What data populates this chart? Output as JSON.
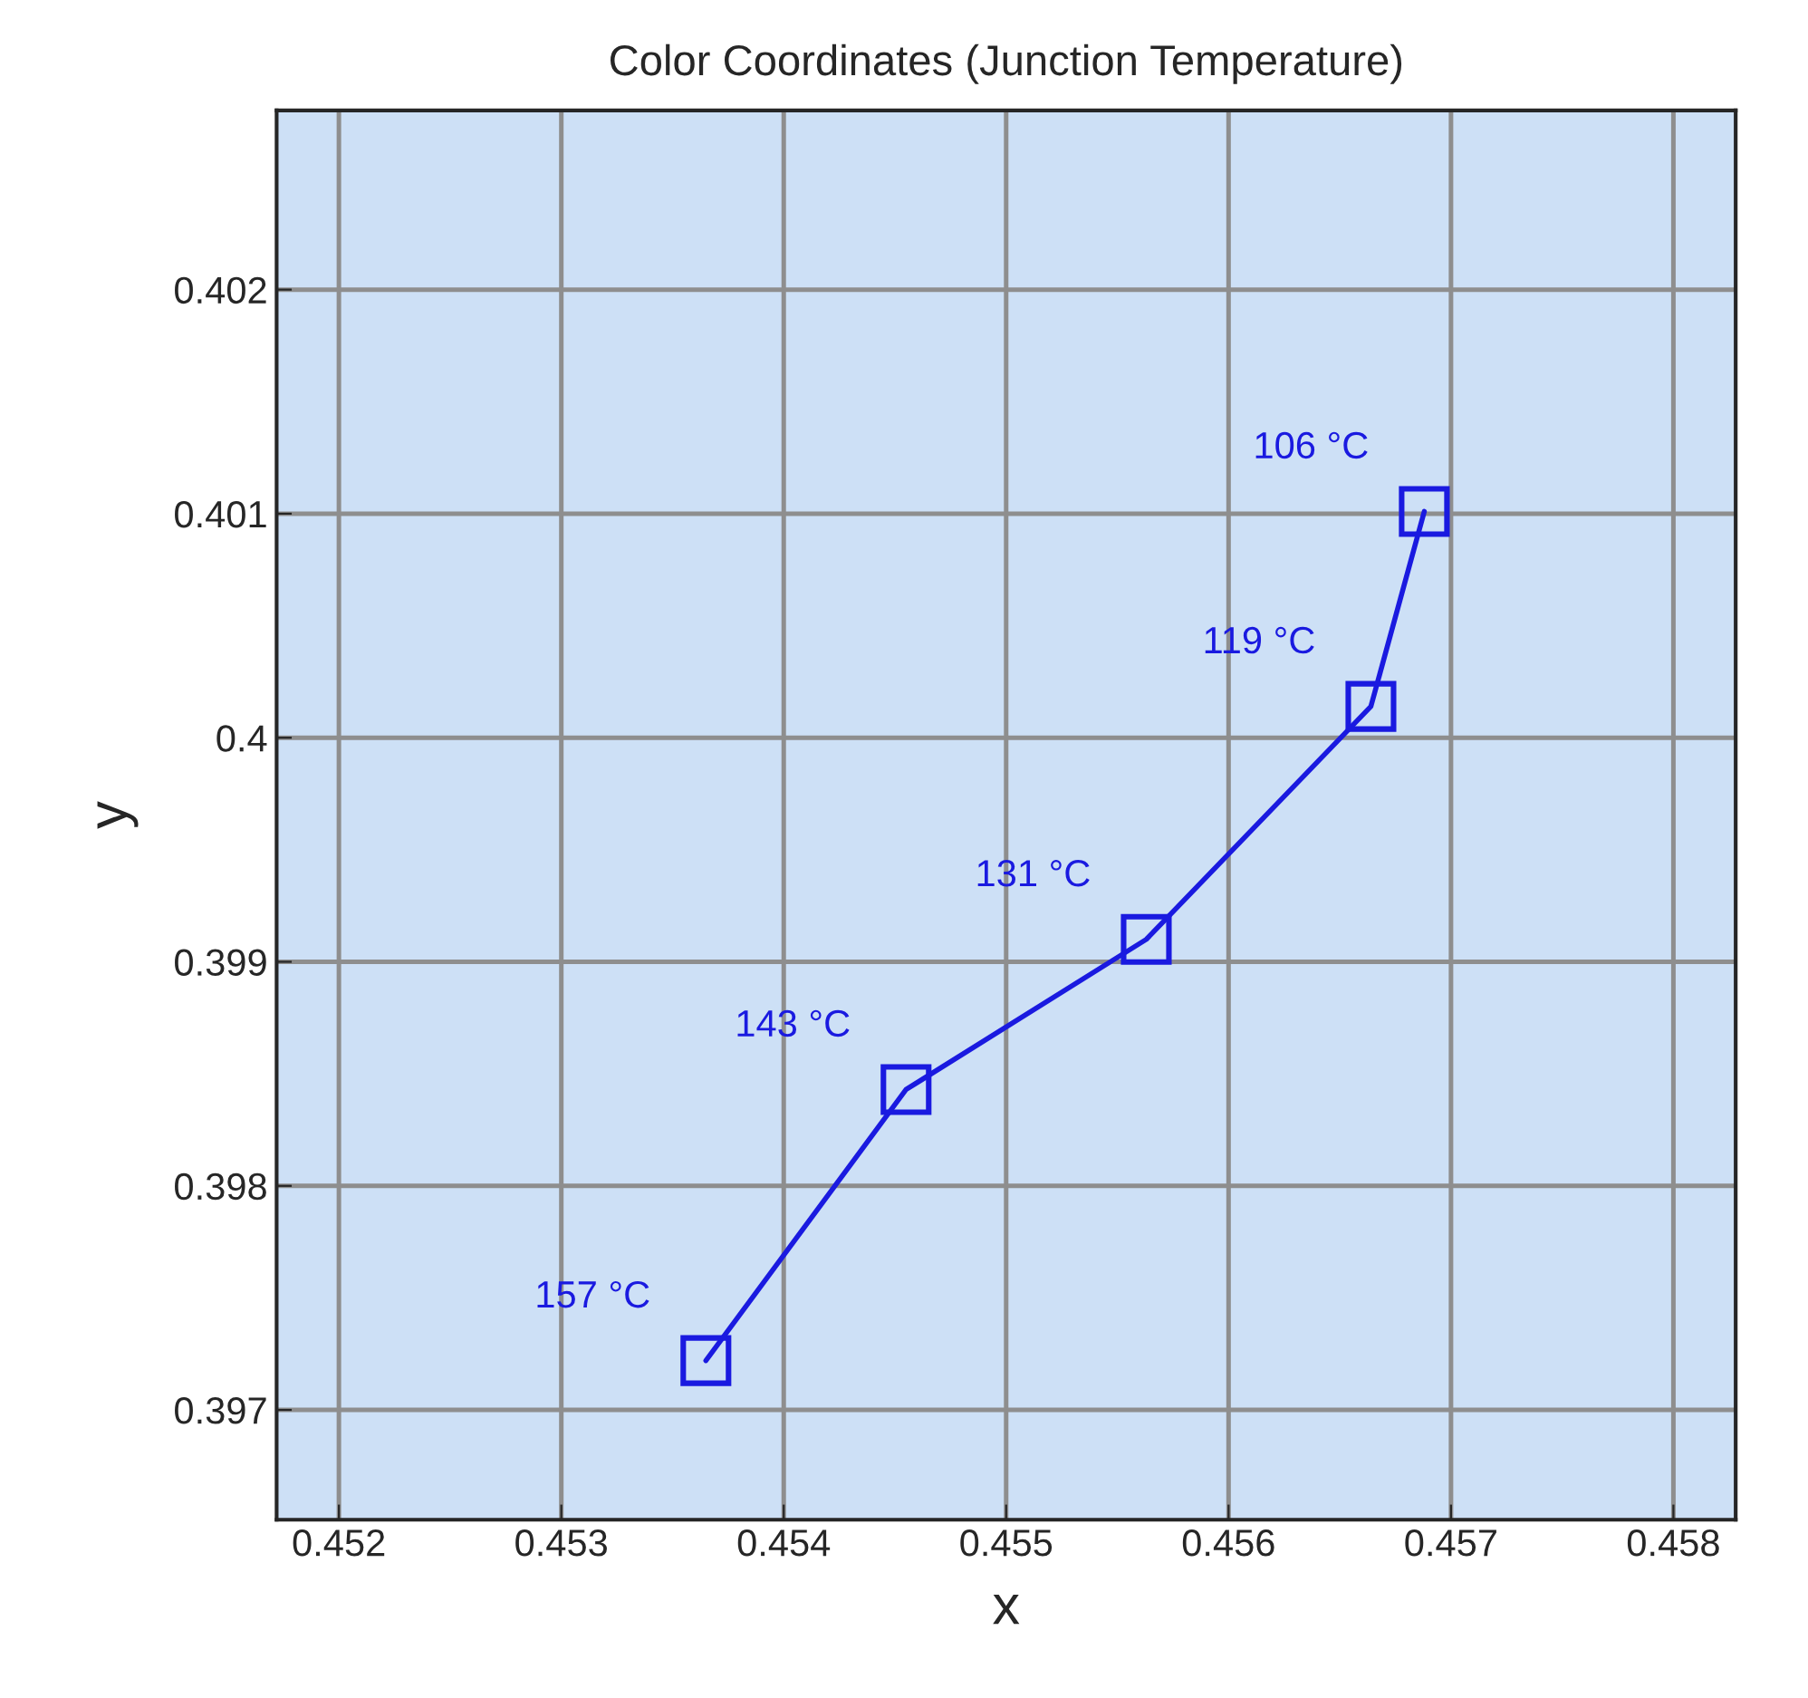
{
  "chart_data": {
    "type": "line",
    "title": "Color Coordinates (Junction Temperature)",
    "xlabel": "x",
    "ylabel": "y",
    "series": [
      {
        "color": "#1a1ae0",
        "x": [
          0.45365,
          0.45455,
          0.45563,
          0.45664,
          0.45688
        ],
        "values": [
          0.39722,
          0.39843,
          0.3991,
          0.40014,
          0.40101
        ]
      }
    ],
    "annotations": [
      {
        "text": "157 °C",
        "x": 0.45365,
        "y": 0.39722
      },
      {
        "text": "143 °C",
        "x": 0.45455,
        "y": 0.39843
      },
      {
        "text": "131 °C",
        "x": 0.45563,
        "y": 0.3991
      },
      {
        "text": "119 °C",
        "x": 0.45664,
        "y": 0.40014
      },
      {
        "text": "106 °C",
        "x": 0.45688,
        "y": 0.40101
      }
    ],
    "xlim": [
      0.45172,
      0.45828
    ],
    "ylim": [
      0.39651,
      0.4028
    ],
    "xticks": [
      0.452,
      0.453,
      0.454,
      0.455,
      0.456,
      0.457,
      0.458
    ],
    "yticks": [
      0.397,
      0.398,
      0.399,
      0.4,
      0.401,
      0.402
    ],
    "grid": true,
    "marker": "square",
    "line_style": "solid"
  }
}
